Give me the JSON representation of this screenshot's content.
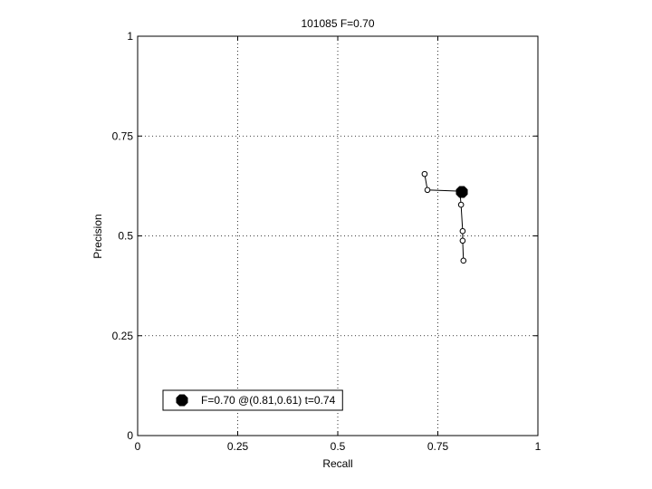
{
  "chart_data": {
    "type": "line",
    "title": "101085 F=0.70",
    "x_label": "Recall",
    "y_label": "Precision",
    "series": [
      {
        "x": [
          0.717,
          0.724,
          0.805,
          0.808,
          0.812,
          0.812,
          0.814
        ],
        "values": [
          0.655,
          0.615,
          0.612,
          0.578,
          0.512,
          0.488,
          0.438
        ],
        "color": "#000000",
        "marker": "open-circle"
      },
      {
        "name": "F=0.70 @(0.81,0.61) t=0.74",
        "x": [
          0.81
        ],
        "values": [
          0.61
        ],
        "color": "#000000",
        "marker": "filled-octagon"
      }
    ],
    "xlim": [
      0,
      1
    ],
    "ylim": [
      0,
      1
    ],
    "xticks": [
      0,
      0.25,
      0.5,
      0.75,
      1
    ],
    "yticks": [
      0,
      0.25,
      0.5,
      0.75,
      1
    ],
    "grid": true,
    "legend": "southwest"
  }
}
